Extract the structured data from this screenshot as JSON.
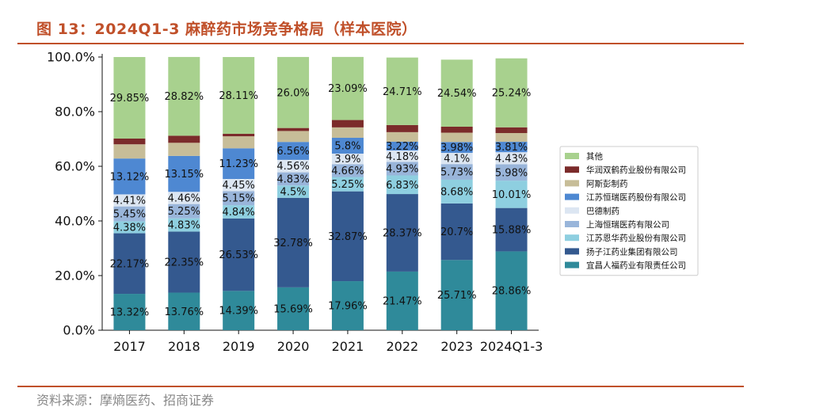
{
  "figure": {
    "title": "图 13：2024Q1-3 麻醉药市场竞争格局（样本医院）",
    "source": "资料来源：摩熵医药、招商证券"
  },
  "chart_data": {
    "type": "bar",
    "stacked": true,
    "categories": [
      "2017",
      "2018",
      "2019",
      "2020",
      "2021",
      "2022",
      "2023",
      "2024Q1-3"
    ],
    "ylim": [
      0,
      100
    ],
    "yticks": [
      0,
      20,
      40,
      60,
      80,
      100
    ],
    "ytick_labels": [
      "0.0%",
      "20.0%",
      "40.0%",
      "60.0%",
      "80.0%",
      "100.0%"
    ],
    "xlabel": "",
    "ylabel": "",
    "legend_position": "right",
    "series": [
      {
        "name": "宜昌人福药业有限责任公司",
        "color": "#2f8a9a",
        "values": [
          13.32,
          13.76,
          14.39,
          15.69,
          17.96,
          21.47,
          25.71,
          28.86
        ],
        "labels": [
          "13.32%",
          "13.76%",
          "14.39%",
          "15.69%",
          "17.96%",
          "21.47%",
          "25.71%",
          "28.86%"
        ]
      },
      {
        "name": "扬子江药业集团有限公司",
        "color": "#34598f",
        "values": [
          22.17,
          22.35,
          26.53,
          32.78,
          32.87,
          28.37,
          20.7,
          15.88
        ],
        "labels": [
          "22.17%",
          "22.35%",
          "26.53%",
          "32.78%",
          "32.87%",
          "28.37%",
          "20.7%",
          "15.88%"
        ]
      },
      {
        "name": "江苏恩华药业股份有限公司",
        "color": "#8ecfe0",
        "values": [
          4.38,
          4.83,
          4.84,
          4.5,
          5.25,
          6.83,
          8.68,
          10.01
        ],
        "labels": [
          "4.38%",
          "4.83%",
          "4.84%",
          "4.5%",
          "5.25%",
          "6.83%",
          "8.68%",
          "10.01%"
        ]
      },
      {
        "name": "上海恒瑞医药有限公司",
        "color": "#99b5da",
        "values": [
          5.45,
          5.25,
          5.15,
          4.83,
          4.66,
          4.93,
          5.73,
          5.98
        ],
        "labels": [
          "5.45%",
          "5.25%",
          "5.15%",
          "4.83%",
          "4.66%",
          "4.93%",
          "5.73%",
          "5.98%"
        ]
      },
      {
        "name": "巴德制药",
        "color": "#dce6f2",
        "values": [
          4.41,
          4.46,
          4.45,
          4.56,
          3.9,
          4.18,
          4.1,
          4.43
        ],
        "labels": [
          "4.41%",
          "4.46%",
          "4.45%",
          "4.56%",
          "3.9%",
          "4.18%",
          "4.1%",
          "4.43%"
        ]
      },
      {
        "name": "江苏恒瑞医药股份有限公司",
        "color": "#4e88d2",
        "values": [
          13.12,
          13.15,
          11.23,
          6.56,
          5.8,
          3.22,
          3.98,
          3.81
        ],
        "labels": [
          "13.12%",
          "13.15%",
          "11.23%",
          "6.56%",
          "5.8%",
          "3.22%",
          "3.98%",
          "3.81%"
        ]
      },
      {
        "name": "阿斯彭制药",
        "color": "#c7bd98",
        "values": [
          5.2,
          4.8,
          4.4,
          4.0,
          3.8,
          3.5,
          3.4,
          3.2
        ],
        "labels": [
          "",
          "",
          "",
          "",
          "",
          "",
          "",
          ""
        ]
      },
      {
        "name": "华润双鹤药业股份有限公司",
        "color": "#7b2b2a",
        "values": [
          2.1,
          2.6,
          0.9,
          1.1,
          2.7,
          2.6,
          2.2,
          2.1
        ],
        "labels": [
          "",
          "",
          "",
          "",
          "",
          "",
          "",
          ""
        ]
      },
      {
        "name": "其他",
        "color": "#a8d18e",
        "values": [
          29.85,
          28.82,
          28.11,
          26.0,
          23.09,
          24.71,
          24.54,
          25.24
        ],
        "labels": [
          "29.85%",
          "28.82%",
          "28.11%",
          "26.0%",
          "23.09%",
          "24.71%",
          "24.54%",
          "25.24%"
        ]
      }
    ],
    "legend_order": [
      "其他",
      "华润双鹤药业股份有限公司",
      "阿斯彭制药",
      "江苏恒瑞医药股份有限公司",
      "巴德制药",
      "上海恒瑞医药有限公司",
      "江苏恩华药业股份有限公司",
      "扬子江药业集团有限公司",
      "宜昌人福药业有限责任公司"
    ]
  }
}
